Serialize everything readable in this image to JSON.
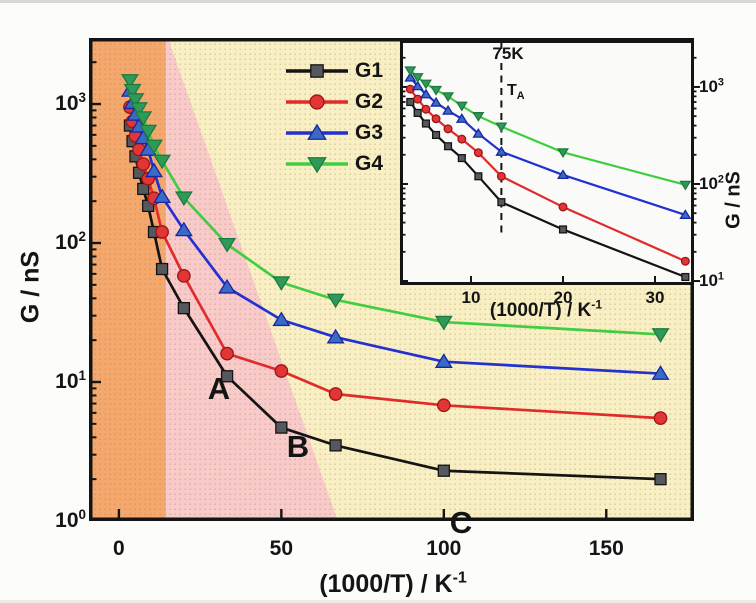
{
  "figure": {
    "bg": "#fcfcfb",
    "top_border": "#d9d7d3",
    "frame_color": "#141414"
  },
  "main_plot": {
    "xlabel_base": "(1000/T) / K",
    "xlabel_sup": "-1",
    "ylabel": "G / nS",
    "x_tick_labels": [
      "0",
      "50",
      "100",
      "150"
    ],
    "y_tick_base": "10",
    "region_labels": [
      "A",
      "B",
      "C"
    ]
  },
  "inset": {
    "xlabel_base": "(1000/T) / K",
    "xlabel_sup": "-1",
    "ylabel": "G / nS",
    "x_tick_labels": [
      "10",
      "20",
      "30"
    ],
    "y_tick_base": "10",
    "temp_label": "75K",
    "transition_base": "T",
    "transition_sub": "A"
  },
  "chart_data": {
    "type": "line",
    "title": "",
    "xlabel": "(1000/T) / K^-1",
    "ylabel": "G / nS",
    "y_scale": "log",
    "legend_position": "upper-left-of-main",
    "x": [
      3.4,
      4.2,
      5.1,
      6.2,
      7.5,
      9,
      10.8,
      13.3,
      20,
      33.3,
      50,
      66.7,
      100,
      166.7
    ],
    "series": [
      {
        "name": "G1",
        "line_color": "#141414",
        "marker": "square",
        "marker_fill": "#55585c",
        "marker_edge": "#141414",
        "values": [
          700,
          540,
          420,
          320,
          245,
          185,
          120,
          65,
          34,
          11,
          4.7,
          3.5,
          2.3,
          2.0
        ]
      },
      {
        "name": "G2",
        "line_color": "#e02b2b",
        "marker": "circle",
        "marker_fill": "#e23535",
        "marker_edge": "#9e1414",
        "values": [
          950,
          750,
          590,
          470,
          370,
          290,
          210,
          120,
          58,
          16,
          12,
          8.2,
          6.8,
          5.5
        ]
      },
      {
        "name": "G3",
        "line_color": "#2431d2",
        "marker": "triangle-up",
        "marker_fill": "#3b6ac6",
        "marker_edge": "#17279e",
        "values": [
          1250,
          1020,
          840,
          690,
          570,
          470,
          330,
          215,
          124,
          48,
          28,
          21,
          14,
          11.5
        ]
      },
      {
        "name": "G4",
        "line_color": "#40cd40",
        "marker": "triangle-down",
        "marker_fill": "#2e9a58",
        "marker_edge": "#1f7a40",
        "values": [
          1480,
          1260,
          1080,
          930,
          800,
          640,
          500,
          390,
          212,
          98,
          52,
          39,
          27,
          22
        ]
      }
    ],
    "main_axis": {
      "xlim": [
        -9.2,
        177
      ],
      "ylog_lim": [
        0,
        3.475
      ],
      "x_tick_values": [
        0,
        50,
        100,
        150
      ],
      "y_tick_exponents": [
        0,
        1,
        2,
        3
      ]
    },
    "inset_axis": {
      "xlim": [
        2.28,
        34.24
      ],
      "ylog_lim": [
        0.959,
        3.484
      ],
      "x_tick_values": [
        10,
        20,
        30
      ],
      "y_tick_exponents": [
        1,
        2,
        3
      ],
      "max_x_plotted": 33.5
    },
    "inset_annotation": {
      "dashed_x": 13.3,
      "temp_label": "75K",
      "transition_label": "T_A"
    },
    "regions": [
      {
        "label": "A",
        "color": "#f5a86e",
        "shape": "band",
        "x_range": [
          -9.2,
          14.46
        ]
      },
      {
        "label": "B",
        "color": "#f8caca",
        "shape": "wedge",
        "top_x": [
          14.46,
          15.1
        ],
        "bottom_x": [
          14.46,
          67.4
        ]
      },
      {
        "label": "C",
        "color": "#f9efc4",
        "shape": "rest"
      }
    ],
    "texture_dot_color": "rgba(135,100,30,0.28)"
  }
}
